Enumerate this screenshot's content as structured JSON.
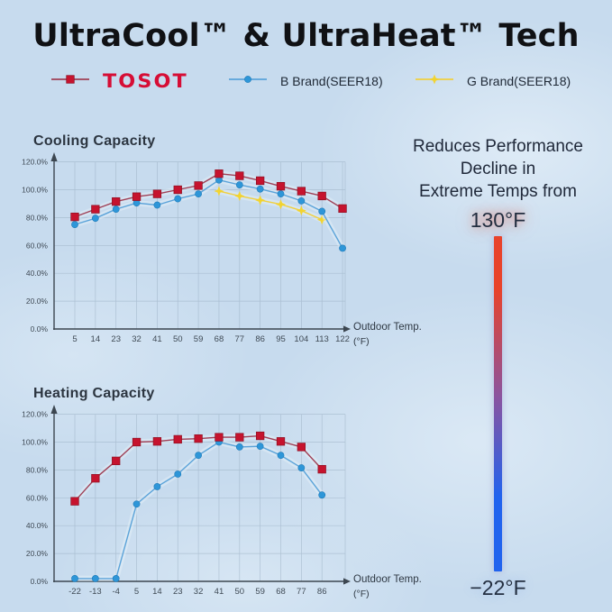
{
  "title": "UltraCool™ & UltraHeat™ Tech",
  "legend": [
    {
      "name": "TOSOT",
      "marker": "square",
      "marker_color": "#c6132e",
      "line_color": "#9f4056"
    },
    {
      "name": "B Brand(SEER18)",
      "marker": "circle",
      "marker_color": "#2e96d8",
      "line_color": "#5ba3d9"
    },
    {
      "name": "G Brand(SEER18)",
      "marker": "star",
      "marker_color": "#f2d32a",
      "line_color": "#f0d040"
    }
  ],
  "chart_data": [
    {
      "type": "line",
      "title": "Cooling Capacity",
      "x": [
        5,
        14,
        23,
        32,
        41,
        50,
        59,
        68,
        77,
        86,
        95,
        104,
        113,
        122
      ],
      "xlabel": "Outdoor Temp.",
      "xunit": "(°F)",
      "yticks": [
        "0.0%",
        "20.0%",
        "40.0%",
        "60.0%",
        "80.0%",
        "100.0%",
        "120.0%"
      ],
      "ylim": [
        0,
        120
      ],
      "grid": true,
      "series": [
        {
          "name": "TOSOT",
          "marker": "square",
          "marker_color": "#c6132e",
          "line_color": "#9f4056",
          "values": [
            80.5,
            86,
            91.5,
            95,
            97,
            100,
            103,
            111.5,
            110,
            106.5,
            102.5,
            99,
            95.5,
            86.5
          ]
        },
        {
          "name": "B Brand(SEER18)",
          "marker": "circle",
          "marker_color": "#2e96d8",
          "line_color": "#5ba3d9",
          "values": [
            75,
            79.5,
            86,
            90.5,
            89,
            93.5,
            97,
            107,
            103.5,
            100.5,
            97,
            92,
            84.5,
            58
          ]
        },
        {
          "name": "G Brand(SEER18)",
          "marker": "star",
          "marker_color": "#f2d32a",
          "line_color": "#f0d040",
          "values": [
            null,
            null,
            null,
            null,
            null,
            null,
            null,
            99,
            95.5,
            92.5,
            89.5,
            85,
            78.5,
            null
          ]
        }
      ]
    },
    {
      "type": "line",
      "title": "Heating Capacity",
      "x": [
        -22,
        -13,
        -4,
        5,
        14,
        23,
        32,
        41,
        50,
        59,
        68,
        77,
        86
      ],
      "xlabel": "Outdoor Temp.",
      "xunit": "(°F)",
      "yticks": [
        "0.0%",
        "20.0%",
        "40.0%",
        "60.0%",
        "80.0%",
        "100.0%",
        "120.0%"
      ],
      "ylim": [
        0,
        120
      ],
      "grid": true,
      "series": [
        {
          "name": "TOSOT",
          "marker": "square",
          "marker_color": "#c6132e",
          "line_color": "#9f4056",
          "values": [
            57.5,
            74,
            86.5,
            100,
            100.5,
            102,
            102.5,
            103.5,
            103.5,
            104.5,
            100.5,
            96.5,
            80.5
          ]
        },
        {
          "name": "B Brand(SEER18)",
          "marker": "circle",
          "marker_color": "#2e96d8",
          "line_color": "#5ba3d9",
          "values": [
            2,
            2,
            2,
            55.5,
            68,
            77,
            90.5,
            100,
            96.5,
            97,
            90.5,
            81.5,
            62
          ]
        }
      ]
    }
  ],
  "right_panel": {
    "heading_line1": "Reduces Performance",
    "heading_line2": "Decline in",
    "heading_line3": "Extreme Temps from",
    "top_temp": "130°F",
    "bottom_temp": "−22°F",
    "bar_colors": [
      "#e8432b",
      "#8a54a0",
      "#2163ee"
    ]
  },
  "colors": {
    "background": "#c7dbee",
    "tosot_red": "#d60d35",
    "series_red": "#c6132e",
    "series_blue": "#2e96d8",
    "series_yellow": "#f2d32a"
  }
}
